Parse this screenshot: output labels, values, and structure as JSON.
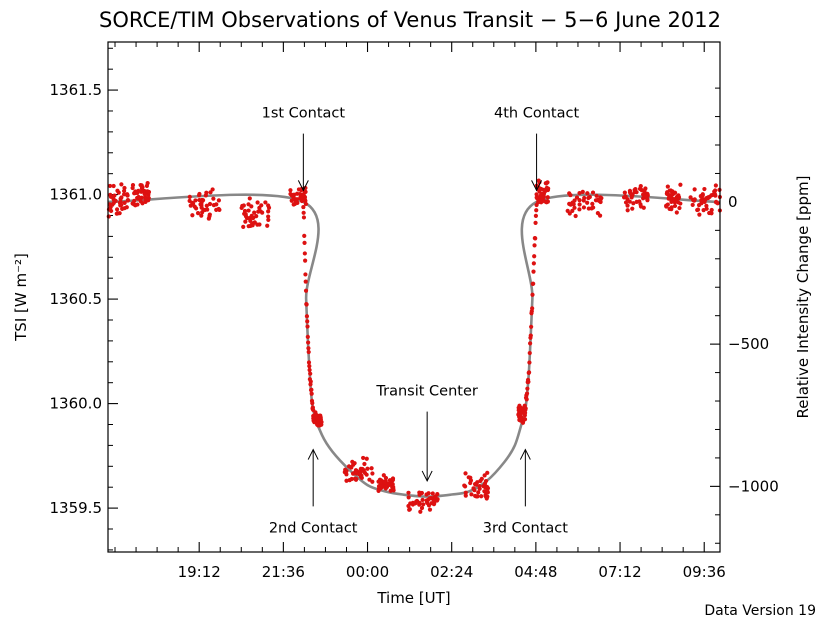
{
  "chart_data": {
    "type": "scatter",
    "title": "SORCE/TIM Observations of Venus Transit − 5−6 June 2012",
    "xlabel": "Time [UT]",
    "ylabel": "TSI [W m⁻²]",
    "y2label": "Relative Intensity Change [ppm]",
    "footnote": "Data Version 19",
    "xlim": [
      16.6,
      34.05
    ],
    "ylim": [
      1359.29,
      1361.73
    ],
    "y2_reference_tsi": 1360.965,
    "x_ticks": [
      {
        "value": 19.2,
        "label": "19:12"
      },
      {
        "value": 21.6,
        "label": "21:36"
      },
      {
        "value": 24.0,
        "label": "00:00"
      },
      {
        "value": 26.4,
        "label": "02:24"
      },
      {
        "value": 28.8,
        "label": "04:48"
      },
      {
        "value": 31.2,
        "label": "07:12"
      },
      {
        "value": 33.6,
        "label": "09:36"
      }
    ],
    "y_ticks": [
      {
        "value": 1359.5,
        "label": "1359.5"
      },
      {
        "value": 1360.0,
        "label": "1360.0"
      },
      {
        "value": 1360.5,
        "label": "1360.5"
      },
      {
        "value": 1361.0,
        "label": "1361.0"
      },
      {
        "value": 1361.5,
        "label": "1361.5"
      }
    ],
    "y2_ticks": [
      {
        "value": 0,
        "label": "0"
      },
      {
        "value": -500,
        "label": "−500"
      },
      {
        "value": -1000,
        "label": "−1000"
      }
    ],
    "baseline_tsi": 1360.965,
    "transit_depth_tsi": 1359.555,
    "contacts": {
      "first": 22.17,
      "second": 22.45,
      "center": 25.7,
      "third": 28.5,
      "fourth": 28.82
    },
    "model_series": {
      "name": "Model fit",
      "color": "#888888",
      "x": [
        16.6,
        22.17,
        22.25,
        22.35,
        22.45,
        22.7,
        23.0,
        23.5,
        24.0,
        24.5,
        25.0,
        25.7,
        26.4,
        26.9,
        27.4,
        27.9,
        28.2,
        28.42,
        28.5,
        28.6,
        28.7,
        28.82,
        34.05
      ],
      "y": [
        1360.965,
        1360.965,
        1360.5,
        1360.15,
        1359.97,
        1359.85,
        1359.77,
        1359.68,
        1359.61,
        1359.58,
        1359.565,
        1359.555,
        1359.565,
        1359.58,
        1359.63,
        1359.72,
        1359.8,
        1359.92,
        1359.97,
        1360.15,
        1360.5,
        1360.965,
        1360.965
      ]
    },
    "observation_clusters": [
      {
        "name": "pre-transit orbit 1",
        "color": "#dd1111",
        "x_range": [
          16.6,
          17.2
        ],
        "tsi_range": [
          1360.89,
          1361.06
        ]
      },
      {
        "name": "pre-transit orbit 2",
        "color": "#dd1111",
        "x_range": [
          17.3,
          17.8
        ],
        "tsi_range": [
          1360.92,
          1361.08
        ]
      },
      {
        "name": "pre-transit orbit 3",
        "color": "#dd1111",
        "x_range": [
          18.9,
          19.8
        ],
        "tsi_range": [
          1360.88,
          1361.03
        ]
      },
      {
        "name": "pre-transit orbit 4",
        "color": "#dd1111",
        "x_range": [
          20.4,
          21.2
        ],
        "tsi_range": [
          1360.81,
          1361.0
        ]
      },
      {
        "name": "pre-ingress",
        "color": "#dd1111",
        "x_range": [
          21.8,
          22.25
        ],
        "tsi_range": [
          1360.93,
          1361.04
        ]
      },
      {
        "name": "ingress",
        "color": "#dd1111",
        "x_range": [
          22.17,
          22.45
        ],
        "tsi_range": [
          1359.96,
          1360.95
        ]
      },
      {
        "name": "post-ingress",
        "color": "#dd1111",
        "x_range": [
          22.45,
          22.7
        ],
        "tsi_range": [
          1359.88,
          1359.97
        ]
      },
      {
        "name": "transit orbit 1",
        "color": "#dd1111",
        "x_range": [
          23.35,
          24.15
        ],
        "tsi_range": [
          1359.6,
          1359.75
        ]
      },
      {
        "name": "transit orbit 2",
        "color": "#dd1111",
        "x_range": [
          24.3,
          24.75
        ],
        "tsi_range": [
          1359.57,
          1359.66
        ]
      },
      {
        "name": "transit orbit 3",
        "color": "#dd1111",
        "x_range": [
          25.15,
          26.0
        ],
        "tsi_range": [
          1359.48,
          1359.58
        ]
      },
      {
        "name": "transit orbit 4",
        "color": "#dd1111",
        "x_range": [
          26.75,
          27.45
        ],
        "tsi_range": [
          1359.52,
          1359.68
        ]
      },
      {
        "name": "pre-egress",
        "color": "#dd1111",
        "x_range": [
          28.3,
          28.5
        ],
        "tsi_range": [
          1359.9,
          1360.0
        ]
      },
      {
        "name": "egress",
        "color": "#dd1111",
        "x_range": [
          28.5,
          28.82
        ],
        "tsi_range": [
          1359.97,
          1360.95
        ]
      },
      {
        "name": "post-egress",
        "color": "#dd1111",
        "x_range": [
          28.82,
          29.15
        ],
        "tsi_range": [
          1360.92,
          1361.08
        ]
      },
      {
        "name": "post-transit orbit 1",
        "color": "#dd1111",
        "x_range": [
          29.7,
          30.7
        ],
        "tsi_range": [
          1360.89,
          1361.04
        ]
      },
      {
        "name": "post-transit orbit 2",
        "color": "#dd1111",
        "x_range": [
          31.3,
          32.0
        ],
        "tsi_range": [
          1360.9,
          1361.06
        ]
      },
      {
        "name": "post-transit orbit 3",
        "color": "#dd1111",
        "x_range": [
          32.5,
          32.95
        ],
        "tsi_range": [
          1360.91,
          1361.05
        ]
      },
      {
        "name": "post-transit orbit 4",
        "color": "#dd1111",
        "x_range": [
          33.2,
          34.05
        ],
        "tsi_range": [
          1360.9,
          1361.06
        ]
      }
    ],
    "annotations": [
      {
        "name": "first-contact",
        "text": "1st Contact",
        "x": 22.17,
        "arrow": "down",
        "label_tsi": 1361.33,
        "tip_tsi": 1361.02
      },
      {
        "name": "fourth-contact",
        "text": "4th Contact",
        "x": 28.82,
        "arrow": "down",
        "label_tsi": 1361.33,
        "tip_tsi": 1361.02
      },
      {
        "name": "transit-center",
        "text": "Transit Center",
        "x": 25.7,
        "arrow": "down",
        "label_tsi": 1360.0,
        "tip_tsi": 1359.63
      },
      {
        "name": "second-contact",
        "text": "2nd Contact",
        "x": 22.45,
        "arrow": "up",
        "label_tsi": 1359.47,
        "tip_tsi": 1359.78
      },
      {
        "name": "third-contact",
        "text": "3rd Contact",
        "x": 28.5,
        "arrow": "up",
        "label_tsi": 1359.47,
        "tip_tsi": 1359.78
      }
    ],
    "grid": false,
    "legend": "none"
  }
}
